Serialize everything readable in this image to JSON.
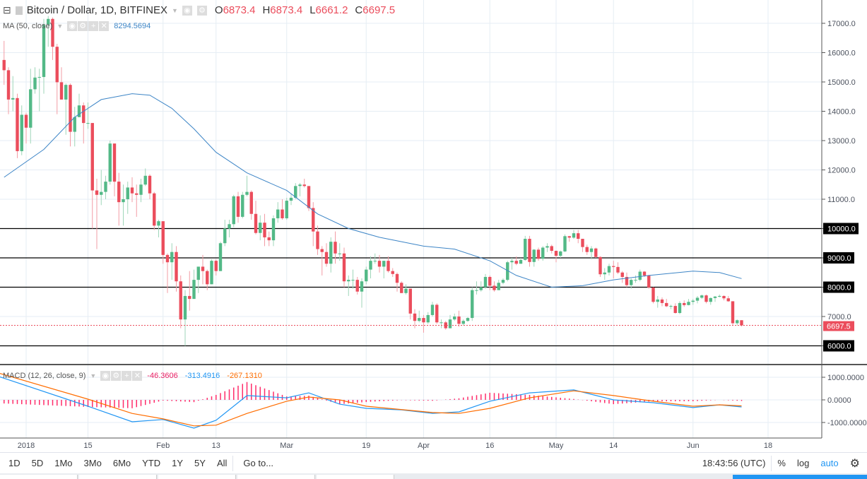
{
  "header": {
    "title": "Bitcoin / Dollar, 1D, BITFINEX",
    "o_label": "O",
    "o": "6873.4",
    "h_label": "H",
    "h": "6873.4",
    "l_label": "L",
    "l": "6661.2",
    "c_label": "C",
    "c": "6697.5"
  },
  "ma_legend": {
    "label": "MA (50, close)",
    "value": "8294.5694"
  },
  "macd_legend": {
    "label": "MACD (12, 26, close, 9)",
    "hist": "-46.3606",
    "macd": "-313.4916",
    "signal": "-267.1310"
  },
  "colors": {
    "up": "#53b987",
    "down": "#eb4d5c",
    "ma": "#3d85c6",
    "macd": "#2196f3",
    "signal": "#ff6d00",
    "hist": "#ff2d6b",
    "hline": "#000000"
  },
  "price_axis": {
    "ticks": [
      6000,
      7000,
      8000,
      9000,
      10000,
      11000,
      12000,
      13000,
      14000,
      15000,
      16000,
      17000
    ],
    "labels": [
      "6000.0",
      "7000.0",
      "8000.0",
      "9000.0",
      "10000.0",
      "11000.0",
      "12000.0",
      "13000.0",
      "14000.0",
      "15000.0",
      "16000.0",
      "17000.0"
    ],
    "last": "6697.5",
    "horizontal_lines": [
      10000,
      9000,
      8000,
      6000
    ]
  },
  "macd_axis": {
    "ticks": [
      1000,
      0,
      -1000
    ],
    "labels": [
      "1000.0000",
      "0.0000",
      "-1000.0000"
    ]
  },
  "time_axis": [
    {
      "d": "2018-01-01",
      "l": "2018"
    },
    {
      "d": "2018-01-15",
      "l": "15"
    },
    {
      "d": "2018-02-01",
      "l": "Feb"
    },
    {
      "d": "2018-02-13",
      "l": "13"
    },
    {
      "d": "2018-03-01",
      "l": "Mar"
    },
    {
      "d": "2018-03-19",
      "l": "19"
    },
    {
      "d": "2018-04-01",
      "l": "Apr"
    },
    {
      "d": "2018-04-16",
      "l": "16"
    },
    {
      "d": "2018-05-01",
      "l": "May"
    },
    {
      "d": "2018-05-14",
      "l": "14"
    },
    {
      "d": "2018-06-01",
      "l": "Jun"
    },
    {
      "d": "2018-06-18",
      "l": "18"
    }
  ],
  "bottom_bar": {
    "ranges": [
      "1D",
      "5D",
      "1Mo",
      "3Mo",
      "6Mo",
      "YTD",
      "1Y",
      "5Y",
      "All"
    ],
    "goto": "Go to...",
    "time": "18:43:56 (UTC)",
    "percent": "%",
    "log": "log",
    "auto": "auto"
  },
  "chart_data": {
    "type": "candlestick",
    "first_date": "2017-12-27",
    "candles": [
      [
        15750,
        16400,
        14900,
        15400
      ],
      [
        15400,
        15500,
        13900,
        14400
      ],
      [
        14400,
        15200,
        14000,
        14450
      ],
      [
        14450,
        14600,
        12400,
        12640
      ],
      [
        12640,
        14200,
        12500,
        13880
      ],
      [
        13880,
        13950,
        12900,
        13440
      ],
      [
        13440,
        15450,
        12900,
        14750
      ],
      [
        14750,
        15500,
        14600,
        15150
      ],
      [
        15150,
        15450,
        14000,
        15170
      ],
      [
        15170,
        17150,
        14600,
        16950
      ],
      [
        16950,
        17250,
        16200,
        17150
      ],
      [
        17150,
        17200,
        15750,
        16200
      ],
      [
        16200,
        16300,
        13900,
        14990
      ],
      [
        14990,
        15500,
        14400,
        14400
      ],
      [
        14400,
        14950,
        13200,
        14900
      ],
      [
        14900,
        14950,
        12800,
        13300
      ],
      [
        13300,
        14150,
        12800,
        13800
      ],
      [
        13800,
        14600,
        13800,
        14200
      ],
      [
        14200,
        14300,
        12900,
        13600
      ],
      [
        13600,
        14300,
        13400,
        13600
      ],
      [
        13600,
        13600,
        10000,
        11300
      ],
      [
        11300,
        11700,
        9300,
        11150
      ],
      [
        11150,
        12000,
        10800,
        11250
      ],
      [
        11250,
        11800,
        11000,
        11600
      ],
      [
        11600,
        13000,
        11500,
        12900
      ],
      [
        12900,
        12900,
        11100,
        11600
      ],
      [
        11600,
        11900,
        10100,
        10900
      ],
      [
        10900,
        11500,
        10100,
        11000
      ],
      [
        11000,
        11600,
        10500,
        11400
      ],
      [
        11400,
        11750,
        10900,
        11200
      ],
      [
        11200,
        11500,
        10400,
        11150
      ],
      [
        11150,
        11700,
        10900,
        11500
      ],
      [
        11500,
        12050,
        11450,
        11800
      ],
      [
        11800,
        11850,
        11000,
        11200
      ],
      [
        11200,
        11250,
        9950,
        10100
      ],
      [
        10100,
        10300,
        9700,
        10250
      ],
      [
        10250,
        10250,
        8800,
        9100
      ],
      [
        9100,
        9150,
        7800,
        8850
      ],
      [
        8850,
        9500,
        8250,
        9200
      ],
      [
        9200,
        9400,
        7850,
        8200
      ],
      [
        8200,
        8400,
        6600,
        6900
      ],
      [
        6900,
        7900,
        6000,
        7700
      ],
      [
        7700,
        8550,
        7200,
        7600
      ],
      [
        7600,
        8600,
        7600,
        8250
      ],
      [
        8250,
        8700,
        7800,
        8700
      ],
      [
        8700,
        9100,
        8100,
        8550
      ],
      [
        8550,
        8600,
        7900,
        8100
      ],
      [
        8100,
        8950,
        8100,
        8900
      ],
      [
        8900,
        8950,
        8400,
        8550
      ],
      [
        8550,
        9550,
        8550,
        9500
      ],
      [
        9500,
        10300,
        9400,
        10000
      ],
      [
        10000,
        10300,
        9700,
        10150
      ],
      [
        10150,
        11150,
        10050,
        11100
      ],
      [
        11100,
        11250,
        10200,
        10400
      ],
      [
        10400,
        11250,
        10350,
        11150
      ],
      [
        11150,
        11800,
        11100,
        11250
      ],
      [
        11250,
        11300,
        10300,
        10500
      ],
      [
        10500,
        10950,
        9800,
        9850
      ],
      [
        9850,
        10450,
        9600,
        10200
      ],
      [
        10200,
        10500,
        9400,
        9700
      ],
      [
        9700,
        9900,
        9400,
        9600
      ],
      [
        9600,
        10450,
        9400,
        10350
      ],
      [
        10350,
        10900,
        10200,
        10650
      ],
      [
        10650,
        11000,
        10300,
        10350
      ],
      [
        10350,
        11050,
        10300,
        10950
      ],
      [
        10950,
        11200,
        10800,
        11050
      ],
      [
        11050,
        11550,
        11000,
        11450
      ],
      [
        11450,
        11550,
        11100,
        11500
      ],
      [
        11500,
        11700,
        11400,
        11450
      ],
      [
        11450,
        11450,
        10600,
        10700
      ],
      [
        10700,
        10900,
        9400,
        9900
      ],
      [
        9900,
        10100,
        9100,
        9300
      ],
      [
        9300,
        9400,
        8400,
        9200
      ],
      [
        9200,
        9500,
        8700,
        8800
      ],
      [
        8800,
        9700,
        8500,
        9550
      ],
      [
        9550,
        9900,
        8800,
        9150
      ],
      [
        9150,
        9500,
        8900,
        9150
      ],
      [
        9150,
        9350,
        8000,
        8200
      ],
      [
        8200,
        8400,
        7700,
        8250
      ],
      [
        8250,
        8600,
        7950,
        8250
      ],
      [
        8250,
        8350,
        7750,
        7850
      ],
      [
        7850,
        8300,
        7300,
        8200
      ],
      [
        8200,
        8700,
        8100,
        8600
      ],
      [
        8600,
        9050,
        8300,
        8900
      ],
      [
        8900,
        9150,
        8800,
        8900
      ],
      [
        8900,
        9100,
        8500,
        8700
      ],
      [
        8700,
        8900,
        8300,
        8900
      ],
      [
        8900,
        9050,
        8500,
        8550
      ],
      [
        8550,
        8650,
        8350,
        8450
      ],
      [
        8450,
        8500,
        7850,
        8150
      ],
      [
        8150,
        8200,
        7800,
        7800
      ],
      [
        7800,
        8100,
        7750,
        7950
      ],
      [
        7950,
        7950,
        6900,
        7100
      ],
      [
        7100,
        7250,
        6600,
        6850
      ],
      [
        6850,
        7200,
        6800,
        6950
      ],
      [
        6950,
        7050,
        6450,
        6800
      ],
      [
        6800,
        7150,
        6750,
        7050
      ],
      [
        7050,
        7500,
        7000,
        7400
      ],
      [
        7400,
        7450,
        6750,
        6800
      ],
      [
        6800,
        6900,
        6600,
        6800
      ],
      [
        6800,
        6850,
        6550,
        6600
      ],
      [
        6600,
        7050,
        6600,
        6900
      ],
      [
        6900,
        7100,
        6850,
        7000
      ],
      [
        7000,
        7200,
        6650,
        6750
      ],
      [
        6750,
        6900,
        6700,
        6850
      ],
      [
        6850,
        6980,
        6820,
        6950
      ],
      [
        6950,
        8000,
        6850,
        7900
      ],
      [
        7900,
        8200,
        7750,
        7900
      ],
      [
        7900,
        8200,
        7850,
        8000
      ],
      [
        8000,
        8450,
        7950,
        8350
      ],
      [
        8350,
        8400,
        7900,
        8050
      ],
      [
        8050,
        8200,
        7850,
        7900
      ],
      [
        7900,
        8250,
        7900,
        8150
      ],
      [
        8150,
        8300,
        8100,
        8250
      ],
      [
        8250,
        8900,
        8200,
        8850
      ],
      [
        8850,
        9000,
        8600,
        8900
      ],
      [
        8900,
        9050,
        8750,
        8800
      ],
      [
        8800,
        9000,
        8800,
        8930
      ],
      [
        8930,
        9750,
        8900,
        9650
      ],
      [
        9650,
        9750,
        8700,
        8860
      ],
      [
        8860,
        9300,
        8700,
        9280
      ],
      [
        9280,
        9350,
        8900,
        8970
      ],
      [
        8970,
        9400,
        8900,
        9350
      ],
      [
        9350,
        9500,
        9200,
        9400
      ],
      [
        9400,
        9450,
        9150,
        9240
      ],
      [
        9240,
        9250,
        8850,
        9070
      ],
      [
        9070,
        9250,
        9000,
        9220
      ],
      [
        9220,
        9800,
        9200,
        9740
      ],
      [
        9740,
        9750,
        9550,
        9690
      ],
      [
        9690,
        9950,
        9650,
        9840
      ],
      [
        9840,
        9950,
        9500,
        9650
      ],
      [
        9650,
        9650,
        9200,
        9370
      ],
      [
        9370,
        9450,
        9100,
        9200
      ],
      [
        9200,
        9400,
        8950,
        9320
      ],
      [
        9320,
        9350,
        9000,
        9030
      ],
      [
        9030,
        9050,
        8350,
        8440
      ],
      [
        8440,
        8650,
        8250,
        8500
      ],
      [
        8500,
        8800,
        8400,
        8720
      ],
      [
        8720,
        8900,
        8300,
        8690
      ],
      [
        8690,
        8850,
        8450,
        8500
      ],
      [
        8500,
        8550,
        8150,
        8350
      ],
      [
        8350,
        8500,
        8000,
        8070
      ],
      [
        8070,
        8300,
        7950,
        8250
      ],
      [
        8250,
        8400,
        8150,
        8250
      ],
      [
        8250,
        8600,
        8200,
        8530
      ],
      [
        8530,
        8550,
        8350,
        8400
      ],
      [
        8400,
        8420,
        7950,
        7990
      ],
      [
        7990,
        8000,
        7450,
        7500
      ],
      [
        7500,
        7700,
        7300,
        7580
      ],
      [
        7580,
        7650,
        7350,
        7460
      ],
      [
        7460,
        7600,
        7320,
        7350
      ],
      [
        7350,
        7400,
        7250,
        7360
      ],
      [
        7360,
        7450,
        7100,
        7120
      ],
      [
        7120,
        7520,
        7080,
        7460
      ],
      [
        7460,
        7550,
        7330,
        7390
      ],
      [
        7390,
        7600,
        7380,
        7500
      ],
      [
        7500,
        7600,
        7400,
        7540
      ],
      [
        7540,
        7700,
        7450,
        7640
      ],
      [
        7640,
        7750,
        7600,
        7720
      ],
      [
        7720,
        7750,
        7450,
        7500
      ],
      [
        7500,
        7650,
        7400,
        7630
      ],
      [
        7630,
        7700,
        7500,
        7680
      ],
      [
        7680,
        7750,
        7650,
        7700
      ],
      [
        7700,
        7720,
        7550,
        7620
      ],
      [
        7620,
        7700,
        7500,
        7520
      ],
      [
        7520,
        7520,
        6700,
        6770
      ],
      [
        6770,
        6900,
        6700,
        6873.4
      ],
      [
        6873.4,
        6873.4,
        6661.2,
        6697.5
      ]
    ],
    "ma50": [
      [
        "2017-12-27",
        11750
      ],
      [
        "2018-01-05",
        12700
      ],
      [
        "2018-01-12",
        13800
      ],
      [
        "2018-01-18",
        14400
      ],
      [
        "2018-01-25",
        14600
      ],
      [
        "2018-01-29",
        14550
      ],
      [
        "2018-02-03",
        14100
      ],
      [
        "2018-02-08",
        13400
      ],
      [
        "2018-02-13",
        12600
      ],
      [
        "2018-02-20",
        11900
      ],
      [
        "2018-03-01",
        11300
      ],
      [
        "2018-03-08",
        10500
      ],
      [
        "2018-03-15",
        10000
      ],
      [
        "2018-03-22",
        9700
      ],
      [
        "2018-04-01",
        9400
      ],
      [
        "2018-04-08",
        9300
      ],
      [
        "2018-04-16",
        8900
      ],
      [
        "2018-04-22",
        8400
      ],
      [
        "2018-04-30",
        8000
      ],
      [
        "2018-05-07",
        8050
      ],
      [
        "2018-05-14",
        8250
      ],
      [
        "2018-05-22",
        8400
      ],
      [
        "2018-06-01",
        8550
      ],
      [
        "2018-06-07",
        8500
      ],
      [
        "2018-06-12",
        8294.5694
      ]
    ],
    "macd": [
      [
        "2017-12-22",
        1280
      ],
      [
        "2018-01-15",
        -280
      ],
      [
        "2018-01-25",
        -970
      ],
      [
        "2018-02-01",
        -870
      ],
      [
        "2018-02-08",
        -1250
      ],
      [
        "2018-02-13",
        -900
      ],
      [
        "2018-02-20",
        190
      ],
      [
        "2018-03-01",
        90
      ],
      [
        "2018-03-06",
        310
      ],
      [
        "2018-03-13",
        -190
      ],
      [
        "2018-03-19",
        -375
      ],
      [
        "2018-03-27",
        -440
      ],
      [
        "2018-04-03",
        -600
      ],
      [
        "2018-04-09",
        -530
      ],
      [
        "2018-04-16",
        -60
      ],
      [
        "2018-04-25",
        310
      ],
      [
        "2018-05-05",
        440
      ],
      [
        "2018-05-14",
        0
      ],
      [
        "2018-05-23",
        -125
      ],
      [
        "2018-06-01",
        -340
      ],
      [
        "2018-06-07",
        -220
      ],
      [
        "2018-06-12",
        -313.4916
      ]
    ],
    "signal": [
      [
        "2017-12-22",
        1400
      ],
      [
        "2018-01-15",
        30
      ],
      [
        "2018-01-25",
        -600
      ],
      [
        "2018-02-01",
        -840
      ],
      [
        "2018-02-08",
        -1150
      ],
      [
        "2018-02-13",
        -1120
      ],
      [
        "2018-02-20",
        -600
      ],
      [
        "2018-03-01",
        -60
      ],
      [
        "2018-03-06",
        125
      ],
      [
        "2018-03-13",
        0
      ],
      [
        "2018-03-19",
        -280
      ],
      [
        "2018-04-03",
        -560
      ],
      [
        "2018-04-09",
        -600
      ],
      [
        "2018-04-16",
        -375
      ],
      [
        "2018-04-25",
        90
      ],
      [
        "2018-05-05",
        400
      ],
      [
        "2018-05-14",
        190
      ],
      [
        "2018-05-23",
        -60
      ],
      [
        "2018-06-01",
        -280
      ],
      [
        "2018-06-07",
        -220
      ],
      [
        "2018-06-12",
        -267.131
      ]
    ]
  }
}
